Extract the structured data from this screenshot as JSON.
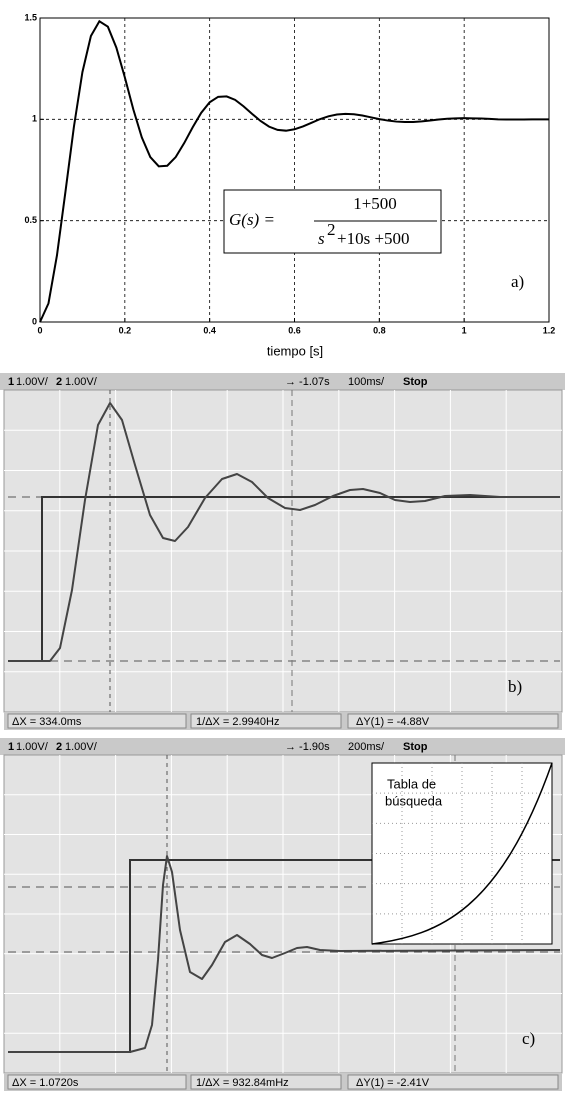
{
  "chart_data": {
    "type": "line",
    "xlabel": "tiempo [s]",
    "x": [
      0,
      0.02,
      0.04,
      0.06,
      0.08,
      0.1,
      0.12,
      0.14,
      0.16,
      0.18,
      0.2,
      0.22,
      0.24,
      0.26,
      0.28,
      0.3,
      0.32,
      0.34,
      0.36,
      0.38,
      0.4,
      0.42,
      0.44,
      0.46,
      0.48,
      0.5,
      0.52,
      0.54,
      0.56,
      0.58,
      0.6,
      0.62,
      0.64,
      0.66,
      0.68,
      0.7,
      0.72,
      0.74,
      0.76,
      0.78,
      0.8,
      0.82,
      0.84,
      0.86,
      0.88,
      0.9,
      0.92,
      0.94,
      0.96,
      0.98,
      1,
      1.02,
      1.04,
      1.06,
      1.08,
      1.1,
      1.12,
      1.14,
      1.16,
      1.18,
      1.2
    ],
    "values": [
      0,
      0.092,
      0.329,
      0.643,
      0.964,
      1.233,
      1.411,
      1.484,
      1.457,
      1.354,
      1.207,
      1.049,
      0.911,
      0.814,
      0.768,
      0.771,
      0.814,
      0.883,
      0.961,
      1.032,
      1.084,
      1.111,
      1.113,
      1.096,
      1.064,
      1.027,
      0.992,
      0.964,
      0.948,
      0.944,
      0.951,
      0.965,
      0.983,
      1.001,
      1.015,
      1.024,
      1.027,
      1.025,
      1.019,
      1.01,
      1.001,
      0.994,
      0.989,
      0.987,
      0.987,
      0.99,
      0.994,
      0.999,
      1.003,
      1.005,
      1.006,
      1.005,
      1.004,
      1.002,
      1,
      0.999,
      0.999,
      0.999,
      1,
      1,
      1
    ],
    "color": "#000000",
    "xlim": [
      0,
      1.2
    ],
    "xticks": [
      0,
      0.2,
      0.4,
      0.6,
      0.8,
      1,
      1.2
    ],
    "ylim": [
      0,
      1.5
    ],
    "yticks": [
      0,
      0.5,
      1,
      1.5
    ],
    "grid": true,
    "annotations": {
      "lhs": "G(s) =",
      "numerator": "1+500",
      "den_base": "s",
      "den_exp": "2",
      "den_rest": "+10s +500",
      "panel": "a)"
    }
  },
  "scopes": [
    {
      "channels": [
        "1",
        "1.00V/",
        "2",
        "1.00V/"
      ],
      "delay": "→ -1.07s",
      "timebase": "100ms/",
      "state": "Stop",
      "readouts": [
        "ΔX = 334.0ms",
        "1/ΔX = 2.9940Hz",
        "ΔY(1) = -4.88V"
      ],
      "panel": "b)"
    },
    {
      "channels": [
        "1",
        "1.00V/",
        "2",
        "1.00V/"
      ],
      "delay": "→ -1.90s",
      "timebase": "200ms/",
      "state": "Stop",
      "readouts": [
        "ΔX = 1.0720s",
        "1/ΔX = 932.84mHz",
        "ΔY(1) = -2.41V"
      ],
      "panel": "c)",
      "inset": [
        "Tabla de",
        "búsqueda"
      ]
    }
  ]
}
